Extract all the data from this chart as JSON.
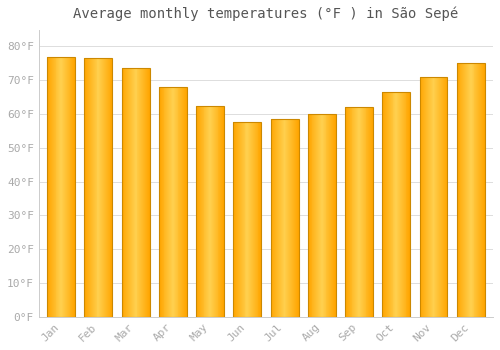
{
  "title": "Average monthly temperatures (°F ) in São Sepé",
  "months": [
    "Jan",
    "Feb",
    "Mar",
    "Apr",
    "May",
    "Jun",
    "Jul",
    "Aug",
    "Sep",
    "Oct",
    "Nov",
    "Dec"
  ],
  "values": [
    77,
    76.5,
    73.5,
    68,
    62.5,
    57.5,
    58.5,
    60,
    62,
    66.5,
    71,
    75
  ],
  "bar_color_left": "#FFA500",
  "bar_color_center": "#FFD050",
  "bar_color_right": "#FFA500",
  "background_color": "#FFFFFF",
  "plot_bg_color": "#FAFAFA",
  "grid_color": "#DDDDDD",
  "yticks": [
    0,
    10,
    20,
    30,
    40,
    50,
    60,
    70,
    80
  ],
  "ylim": [
    0,
    85
  ],
  "title_fontsize": 10,
  "tick_fontsize": 8,
  "tick_color": "#AAAAAA",
  "title_color": "#555555",
  "bar_width": 0.75,
  "bar_edge_color": "#CC8800",
  "bar_edge_width": 0.8
}
